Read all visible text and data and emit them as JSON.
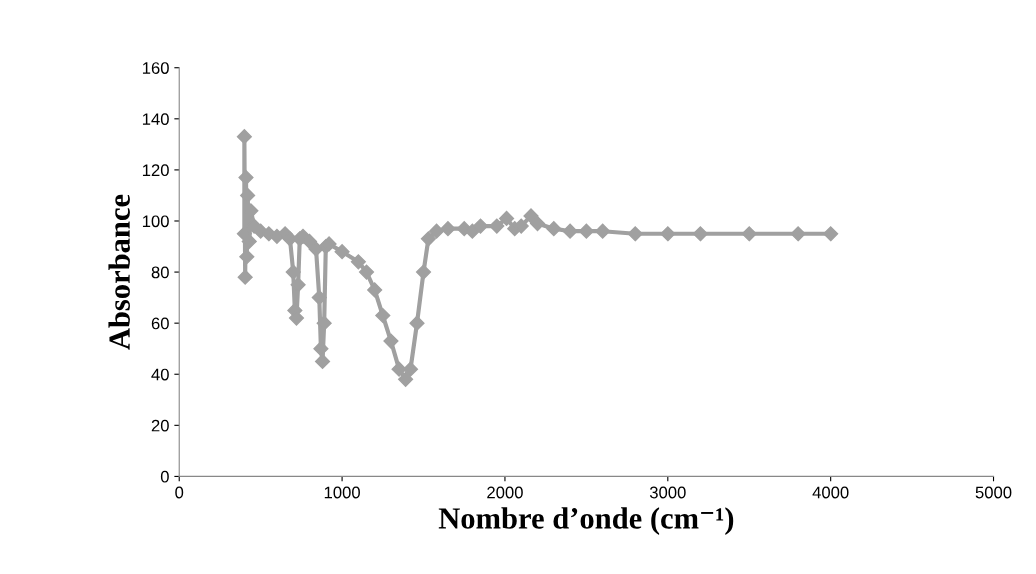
{
  "chart_data": {
    "type": "line",
    "xlabel": "Nombre d’onde (cm⁻¹)",
    "ylabel": "Absorbance",
    "marker": "diamond",
    "line_style": "solid",
    "grid": false,
    "legend": false,
    "xlim": [
      0,
      5000
    ],
    "xticks": [
      0,
      1000,
      2000,
      3000,
      4000,
      5000
    ],
    "ylim": [
      0,
      160
    ],
    "yticks": [
      0,
      20,
      40,
      60,
      80,
      100,
      120,
      140,
      160
    ],
    "series": [
      {
        "color": "#a0a0a0",
        "x": [
          400,
          400,
          405,
          410,
          415,
          420,
          430,
          440,
          460,
          500,
          550,
          600,
          650,
          680,
          700,
          710,
          720,
          730,
          740,
          760,
          800,
          840,
          860,
          870,
          880,
          890,
          900,
          920,
          1000,
          1100,
          1150,
          1200,
          1250,
          1300,
          1350,
          1390,
          1420,
          1460,
          1500,
          1530,
          1580,
          1650,
          1750,
          1800,
          1850,
          1950,
          2010,
          2060,
          2100,
          2160,
          2200,
          2300,
          2400,
          2500,
          2600,
          2800,
          3000,
          3200,
          3500,
          3800,
          4000
        ],
        "values": [
          95,
          133,
          78,
          117,
          86,
          110,
          92,
          104,
          98,
          96,
          95,
          94,
          95,
          93,
          80,
          65,
          62,
          75,
          93,
          94,
          92,
          89,
          70,
          50,
          45,
          60,
          90,
          91,
          88,
          84,
          80,
          73,
          63,
          53,
          42,
          38,
          42,
          60,
          80,
          93,
          96,
          97,
          97,
          96,
          98,
          98,
          101,
          97,
          98,
          102,
          99,
          97,
          96,
          96,
          96,
          95,
          95,
          95,
          95,
          95,
          95
        ]
      }
    ]
  }
}
